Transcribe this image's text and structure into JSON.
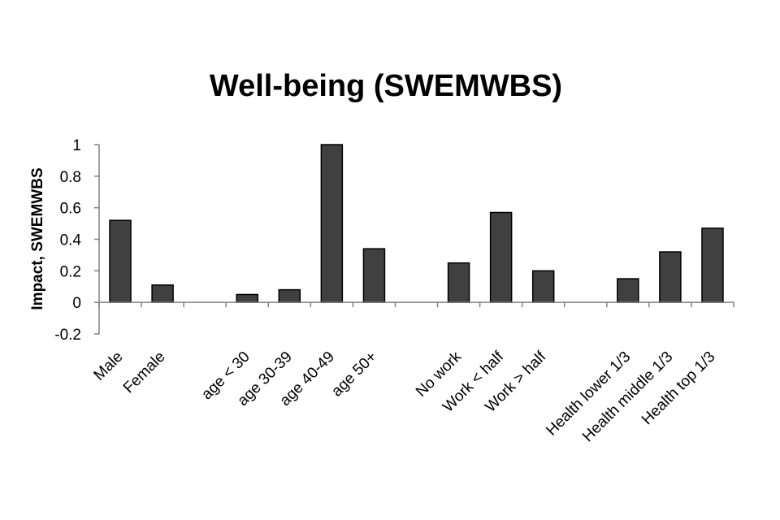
{
  "chart_data": {
    "type": "bar",
    "title": "Well-being (SWEMWBS)",
    "xlabel": "",
    "ylabel": "Impact, SWEMWBS",
    "ylim": [
      -0.2,
      1
    ],
    "yticks": [
      "-0.2",
      "0",
      "0.2",
      "0.4",
      "0.6",
      "0.8",
      "1"
    ],
    "grid": false,
    "categories": [
      "Male",
      "Female",
      "",
      "age < 30",
      "age 30-39",
      "age 40-49",
      "age 50+",
      "",
      "No work",
      "Work < half",
      "Work > half",
      "",
      "Health lower 1/3",
      "Health middle 1/3",
      "Health top 1/3"
    ],
    "values": [
      0.52,
      0.11,
      null,
      0.05,
      0.08,
      1.0,
      0.34,
      null,
      0.25,
      0.57,
      0.2,
      null,
      0.15,
      0.32,
      0.47
    ],
    "colors": {
      "bar": "#404040",
      "axis": "#808080"
    }
  }
}
